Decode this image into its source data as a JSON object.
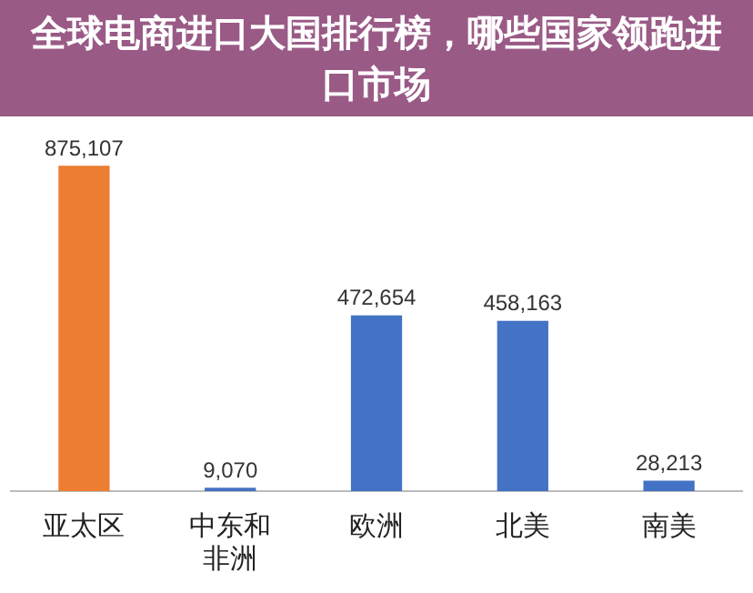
{
  "chart_data": {
    "type": "bar",
    "title": "全球电商进口大国排行榜，哪些国家领跑进口市场",
    "categories": [
      "亚太区",
      "中东和非洲",
      "欧洲",
      "北美",
      "南美"
    ],
    "values": [
      875107,
      9070,
      472654,
      458163,
      28213
    ],
    "colors": [
      "#ed7d31",
      "#4472c4",
      "#4472c4",
      "#4472c4",
      "#4472c4"
    ],
    "value_labels": [
      "875,107",
      "9,070",
      "472,654",
      "458,163",
      "28,213"
    ],
    "grid": false,
    "legend": false
  }
}
